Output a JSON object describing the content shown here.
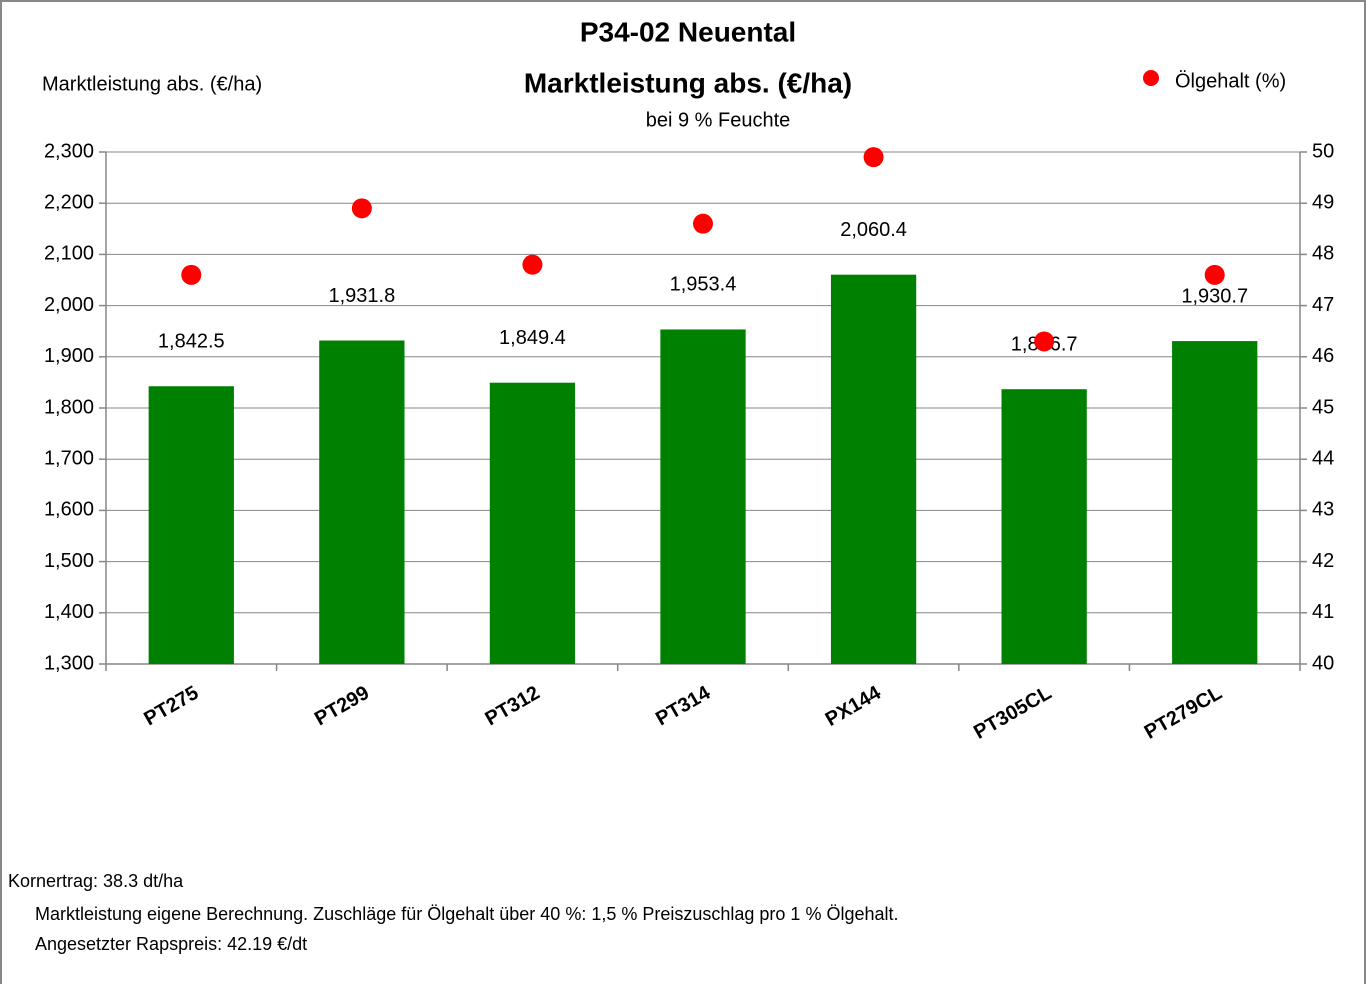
{
  "chart_data": {
    "type": "bar",
    "title": "P34-02 Neuental",
    "subtitle": "Marktleistung abs. (€/ha)",
    "subtitle2": "bei 9 % Feuchte",
    "ylabel": "Marktleistung abs. (€/ha)",
    "categories": [
      "PT275",
      "PT299",
      "PT312",
      "PT314",
      "PX144",
      "PT305CL",
      "PT279CL"
    ],
    "series": [
      {
        "type": "bar",
        "color": "#008000",
        "values": [
          1842.5,
          1931.8,
          1849.4,
          1953.4,
          2060.4,
          1836.7,
          1930.7
        ],
        "value_labels": [
          "1,842.5",
          "1,931.8",
          "1,849.4",
          "1,953.4",
          "2,060.4",
          "1,836.7",
          "1,930.7"
        ]
      },
      {
        "type": "scatter",
        "name": "Ölgehalt (%)",
        "color": "#ff0000",
        "axis": "y2",
        "values": [
          47.6,
          48.9,
          47.8,
          48.6,
          49.9,
          46.3,
          47.6
        ]
      }
    ],
    "ylim": [
      1300,
      2300
    ],
    "yticks": [
      {
        "value": 1300,
        "label": "1,300"
      },
      {
        "value": 1400,
        "label": "1,400"
      },
      {
        "value": 1500,
        "label": "1,500"
      },
      {
        "value": 1600,
        "label": "1,600"
      },
      {
        "value": 1700,
        "label": "1,700"
      },
      {
        "value": 1800,
        "label": "1,800"
      },
      {
        "value": 1900,
        "label": "1,900"
      },
      {
        "value": 2000,
        "label": "2,000"
      },
      {
        "value": 2100,
        "label": "2,100"
      },
      {
        "value": 2200,
        "label": "2,200"
      },
      {
        "value": 2300,
        "label": "2,300"
      }
    ],
    "y2lim": [
      40,
      50
    ],
    "y2ticks": [
      40,
      41,
      42,
      43,
      44,
      45,
      46,
      47,
      48,
      49,
      50
    ],
    "grid": true,
    "legend": "top-right",
    "notes": [
      "Kornertrag: 38.3 dt/ha",
      "Marktleistung eigene Berechnung. Zuschläge für Ölgehalt über 40 %: 1,5 % Preiszuschlag pro 1 % Ölgehalt.",
      "Angesetzter Rapspreis: 42.19 €/dt"
    ]
  }
}
